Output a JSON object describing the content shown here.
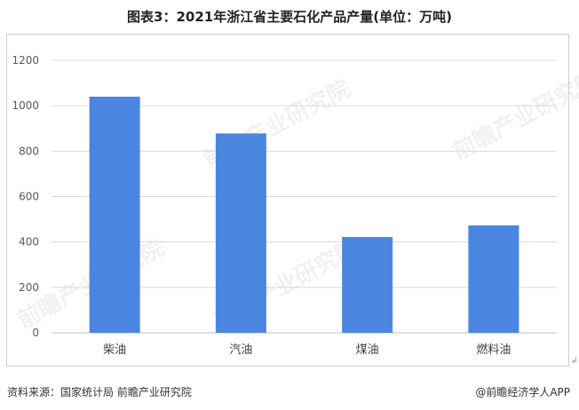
{
  "title": "图表3：2021年浙江省主要石化产品产量(单位：万吨)",
  "footer": {
    "source": "资料来源：国家统计局 前瞻产业研究院",
    "brand": "@前瞻经济学人APP"
  },
  "watermark": "前瞻产业研究院",
  "return_mark": "↲",
  "colors": {
    "bar": "#4a86e0",
    "grid": "#d9d9d9",
    "axis": "#bfbfbf",
    "text": "#595959"
  },
  "chart_data": {
    "type": "bar",
    "title": "图表3：2021年浙江省主要石化产品产量(单位：万吨)",
    "categories": [
      "柴油",
      "汽油",
      "煤油",
      "燃料油"
    ],
    "values": [
      1040,
      878,
      422,
      473
    ],
    "ylim": [
      0,
      1200
    ],
    "yticks": [
      0,
      200,
      400,
      600,
      800,
      1000,
      1200
    ],
    "xlabel": "",
    "ylabel": "",
    "grid": true,
    "legend": "none"
  }
}
